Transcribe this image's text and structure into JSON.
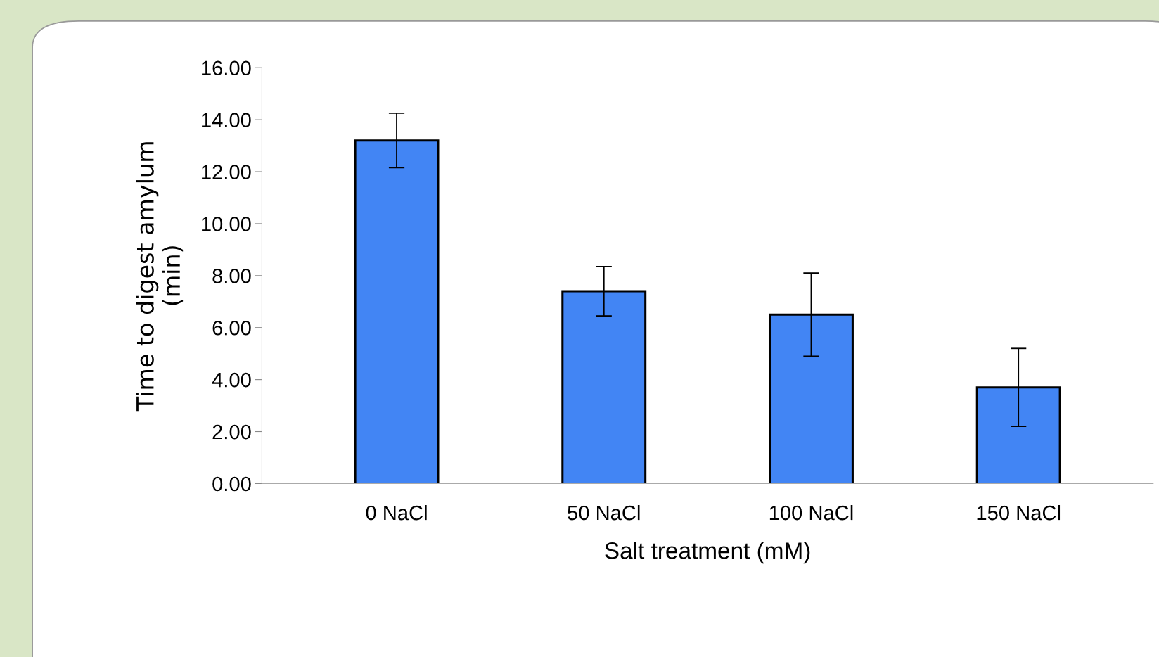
{
  "chart_data": {
    "type": "bar",
    "xlabel": "Salt treatment (mM)",
    "ylabel": "Time to digest amylum\n(min)",
    "categories": [
      "0 NaCl",
      "50 NaCl",
      "100 NaCl",
      "150 NaCl"
    ],
    "values": [
      13.2,
      7.4,
      6.5,
      3.7
    ],
    "errors": [
      1.05,
      0.95,
      1.6,
      1.5
    ],
    "color": "#4285f4",
    "ylim": [
      0,
      16
    ],
    "yticks": [
      {
        "value": 0,
        "label": "0.00"
      },
      {
        "value": 2,
        "label": "2.00"
      },
      {
        "value": 4,
        "label": "4.00"
      },
      {
        "value": 6,
        "label": "6.00"
      },
      {
        "value": 8,
        "label": "8.00"
      },
      {
        "value": 10,
        "label": "10.00"
      },
      {
        "value": 12,
        "label": "12.00"
      },
      {
        "value": 14,
        "label": "14.00"
      },
      {
        "value": 16,
        "label": "16.00"
      }
    ],
    "grid": false,
    "legend": false
  }
}
